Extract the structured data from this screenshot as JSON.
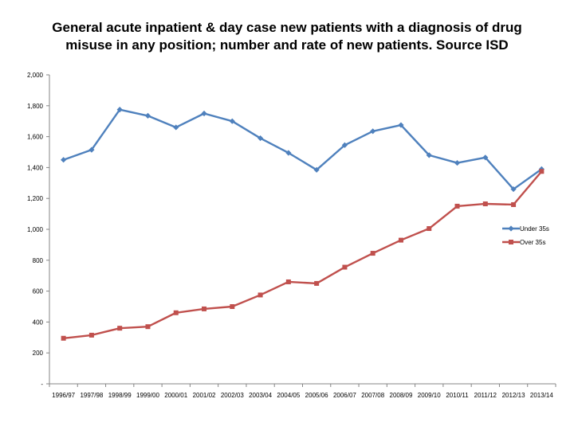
{
  "chart_data": {
    "type": "line",
    "title_lines": [
      "General acute inpatient & day case new patients with a diagnosis of drug",
      "misuse in any position; number and rate of new patients. Source ISD"
    ],
    "xlabel": "",
    "ylabel": "",
    "ylim": [
      0,
      2000
    ],
    "yticks": [
      0,
      200,
      400,
      600,
      800,
      1000,
      1200,
      1400,
      1600,
      1800,
      2000
    ],
    "ytick_labels": [
      "-",
      "200",
      "400",
      "600",
      "800",
      "1,000",
      "1,200",
      "1,400",
      "1,600",
      "1,800",
      "2,000"
    ],
    "grid": false,
    "legend_position": "right",
    "categories": [
      "1996/97",
      "1997/98",
      "1998/99",
      "1999/00",
      "2000/01",
      "2001/02",
      "2002/03",
      "2003/04",
      "2004/05",
      "2005/06",
      "2006/07",
      "2007/08",
      "2008/09",
      "2009/10",
      "2010/11",
      "2011/12",
      "2012/13",
      "2013/14"
    ],
    "series": [
      {
        "name": "Under 35s",
        "color": "#4F81BD",
        "marker": "diamond",
        "values": [
          1450,
          1515,
          1775,
          1735,
          1660,
          1750,
          1700,
          1590,
          1495,
          1385,
          1545,
          1635,
          1675,
          1480,
          1430,
          1465,
          1260,
          1390
        ]
      },
      {
        "name": "Over 35s",
        "color": "#C0504D",
        "marker": "square",
        "values": [
          295,
          315,
          360,
          370,
          460,
          485,
          500,
          575,
          660,
          650,
          755,
          845,
          930,
          1005,
          1150,
          1165,
          1160,
          1375
        ]
      }
    ]
  }
}
